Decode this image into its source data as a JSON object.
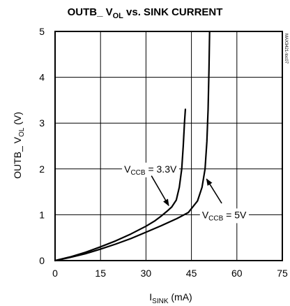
{
  "chart_data": {
    "type": "line",
    "title": {
      "main": "OUTB_ V",
      "sub": "OL",
      "rest": " vs. SINK CURRENT"
    },
    "xlabel": {
      "main": "I",
      "sub": "SINK",
      "rest": " (mA)"
    },
    "ylabel": {
      "main": "OUTB_ V",
      "sub": "OL",
      "rest": " (V)"
    },
    "xlim": [
      0,
      75
    ],
    "ylim": [
      0,
      5
    ],
    "x_ticks": [
      0,
      15,
      30,
      45,
      60,
      75
    ],
    "y_ticks": [
      0,
      1,
      2,
      3,
      4,
      5
    ],
    "grid": true,
    "figure_id": "MAX3421-toc07",
    "series": [
      {
        "values": [
          [
            0,
            0
          ],
          [
            5,
            0.08
          ],
          [
            10,
            0.18
          ],
          [
            15,
            0.3
          ],
          [
            20,
            0.43
          ],
          [
            25,
            0.58
          ],
          [
            30,
            0.75
          ],
          [
            33,
            0.87
          ],
          [
            35,
            0.97
          ],
          [
            37,
            1.08
          ],
          [
            38.5,
            1.17
          ],
          [
            40,
            1.32
          ],
          [
            41,
            1.6
          ],
          [
            41.8,
            2.0
          ],
          [
            42.3,
            2.5
          ],
          [
            42.7,
            3.0
          ],
          [
            43,
            3.3
          ]
        ]
      },
      {
        "values": [
          [
            0,
            0
          ],
          [
            5,
            0.07
          ],
          [
            10,
            0.15
          ],
          [
            15,
            0.25
          ],
          [
            20,
            0.36
          ],
          [
            25,
            0.48
          ],
          [
            30,
            0.62
          ],
          [
            35,
            0.76
          ],
          [
            40,
            0.91
          ],
          [
            44,
            1.05
          ],
          [
            47,
            1.3
          ],
          [
            48.5,
            1.6
          ],
          [
            49.5,
            2.0
          ],
          [
            50.1,
            2.6
          ],
          [
            50.5,
            3.3
          ],
          [
            50.8,
            4.2
          ],
          [
            51,
            5.0
          ]
        ]
      }
    ],
    "annotations": [
      {
        "main": "V",
        "sub": "CCB",
        "rest": " = 3.3V",
        "text_at": [
          22.8,
          2.0
        ],
        "arrow_from": [
          31.8,
          1.85
        ],
        "arrow_to": [
          37.5,
          1.2
        ]
      },
      {
        "main": "V",
        "sub": "CCB",
        "rest": " = 5V",
        "text_at": [
          48.5,
          1.0
        ],
        "arrow_from": [
          55.0,
          1.25
        ],
        "arrow_to": [
          50.0,
          1.78
        ]
      }
    ]
  }
}
